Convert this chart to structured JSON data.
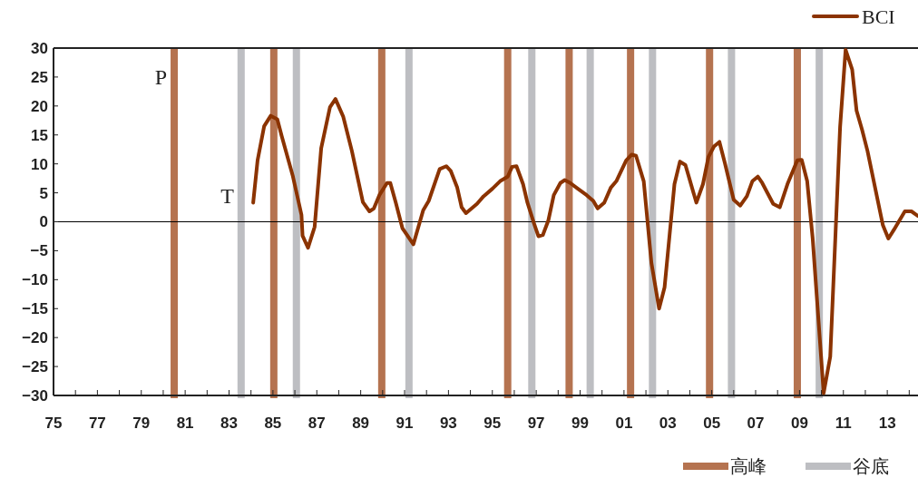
{
  "chart_data": {
    "type": "line",
    "legend": "right",
    "grid": false,
    "xlim": [
      1975,
      2014.4
    ],
    "xticks": [
      {
        "value": 1975,
        "label": "75"
      },
      {
        "value": 1976,
        "label": null
      },
      {
        "value": 1977,
        "label": "77"
      },
      {
        "value": 1978,
        "label": null
      },
      {
        "value": 1979,
        "label": "79"
      },
      {
        "value": 1980,
        "label": null
      },
      {
        "value": 1981,
        "label": "81"
      },
      {
        "value": 1982,
        "label": null
      },
      {
        "value": 1983,
        "label": "83"
      },
      {
        "value": 1984,
        "label": null
      },
      {
        "value": 1985,
        "label": "85"
      },
      {
        "value": 1986,
        "label": null
      },
      {
        "value": 1987,
        "label": "87"
      },
      {
        "value": 1988,
        "label": null
      },
      {
        "value": 1989,
        "label": "89"
      },
      {
        "value": 1990,
        "label": null
      },
      {
        "value": 1991,
        "label": "91"
      },
      {
        "value": 1992,
        "label": null
      },
      {
        "value": 1993,
        "label": "93"
      },
      {
        "value": 1994,
        "label": null
      },
      {
        "value": 1995,
        "label": "95"
      },
      {
        "value": 1996,
        "label": null
      },
      {
        "value": 1997,
        "label": "97"
      },
      {
        "value": 1998,
        "label": null
      },
      {
        "value": 1999,
        "label": "99"
      },
      {
        "value": 2000,
        "label": null
      },
      {
        "value": 2001,
        "label": "01"
      },
      {
        "value": 2002,
        "label": null
      },
      {
        "value": 2003,
        "label": "03"
      },
      {
        "value": 2004,
        "label": null
      },
      {
        "value": 2005,
        "label": "05"
      },
      {
        "value": 2006,
        "label": null
      },
      {
        "value": 2007,
        "label": "07"
      },
      {
        "value": 2008,
        "label": null
      },
      {
        "value": 2009,
        "label": "09"
      },
      {
        "value": 2010,
        "label": null
      },
      {
        "value": 2011,
        "label": "11"
      },
      {
        "value": 2012,
        "label": null
      },
      {
        "value": 2013,
        "label": "13"
      },
      {
        "value": 2014,
        "label": null
      }
    ],
    "ylim": [
      -30,
      30
    ],
    "yticks": [
      -30,
      -25,
      -20,
      -15,
      -10,
      -5,
      0,
      5,
      10,
      15,
      20,
      25,
      30
    ],
    "series": [
      {
        "name": "BCI",
        "color": "#8b3300",
        "line_style": "solid",
        "marker": "none",
        "x": [
          1984.1,
          1984.3,
          1984.6,
          1984.9,
          1985.2,
          1985.4,
          1985.9,
          1986.3,
          1986.35,
          1986.6,
          1986.9,
          1987.2,
          1987.6,
          1987.85,
          1988.2,
          1988.6,
          1989.1,
          1989.4,
          1989.6,
          1989.85,
          1990.2,
          1990.35,
          1990.6,
          1990.9,
          1991.4,
          1991.85,
          1992.1,
          1992.6,
          1992.9,
          1993.1,
          1993.4,
          1993.6,
          1993.8,
          1994.3,
          1994.6,
          1995.0,
          1995.35,
          1995.7,
          1995.9,
          1996.1,
          1996.4,
          1996.6,
          1996.9,
          1997.1,
          1997.3,
          1997.55,
          1997.8,
          1998.1,
          1998.3,
          1998.55,
          1998.9,
          1999.3,
          1999.6,
          1999.8,
          2000.1,
          2000.4,
          2000.65,
          2001.1,
          2001.35,
          2001.55,
          2001.9,
          2002.25,
          2002.6,
          2002.85,
          2003.3,
          2003.55,
          2003.8,
          2004.3,
          2004.6,
          2004.85,
          2005.1,
          2005.35,
          2005.6,
          2006.0,
          2006.3,
          2006.6,
          2006.85,
          2007.1,
          2007.3,
          2007.8,
          2008.1,
          2008.45,
          2008.9,
          2009.1,
          2009.35,
          2009.6,
          2010.1,
          2010.4,
          2010.85,
          2011.1,
          2011.4,
          2011.6,
          2011.85,
          2012.1,
          2012.8,
          2013.05,
          2013.3,
          2013.8,
          2014.1,
          2014.4
        ],
        "values": [
          3.3,
          10.6,
          16.5,
          18.3,
          17.7,
          14.8,
          8.0,
          1.2,
          -2.4,
          -4.5,
          -0.9,
          12.7,
          19.8,
          21.2,
          18.2,
          12.2,
          3.4,
          1.8,
          2.3,
          4.6,
          6.7,
          6.7,
          3.3,
          -1.1,
          -3.9,
          2.0,
          3.6,
          9.1,
          9.6,
          8.8,
          5.9,
          2.5,
          1.5,
          3.1,
          4.4,
          5.7,
          7.0,
          7.8,
          9.5,
          9.6,
          6.5,
          3.3,
          -0.3,
          -2.5,
          -2.3,
          0.2,
          4.6,
          6.7,
          7.2,
          6.7,
          5.7,
          4.6,
          3.6,
          2.3,
          3.3,
          5.9,
          7.0,
          10.6,
          11.6,
          11.4,
          7.0,
          -7.1,
          -15.0,
          -11.3,
          6.5,
          10.4,
          9.8,
          3.3,
          6.5,
          11.2,
          13.0,
          13.8,
          10.1,
          3.8,
          2.8,
          4.4,
          7.0,
          7.8,
          6.7,
          3.1,
          2.5,
          6.5,
          10.6,
          10.7,
          7.0,
          -2.9,
          -29.6,
          -23.3,
          16.4,
          29.7,
          26.3,
          19.2,
          15.9,
          12.2,
          -0.6,
          -2.9,
          -1.4,
          1.8,
          1.8,
          1.0
        ]
      }
    ],
    "ref_lines": [
      {
        "axis": "y",
        "value": 0,
        "label": null,
        "color": "#000000"
      },
      {
        "axis": "x",
        "value": 1980.5,
        "label": "高峰",
        "color": "#b57350"
      },
      {
        "axis": "x",
        "value": 1985.04,
        "label": null,
        "color": "#b57350"
      },
      {
        "axis": "x",
        "value": 1989.96,
        "label": null,
        "color": "#b57350"
      },
      {
        "axis": "x",
        "value": 1995.7,
        "label": null,
        "color": "#b57350"
      },
      {
        "axis": "x",
        "value": 1998.5,
        "label": null,
        "color": "#b57350"
      },
      {
        "axis": "x",
        "value": 2001.3,
        "label": null,
        "color": "#b57350"
      },
      {
        "axis": "x",
        "value": 2004.9,
        "label": null,
        "color": "#b57350"
      },
      {
        "axis": "x",
        "value": 2008.9,
        "label": null,
        "color": "#b57350"
      },
      {
        "axis": "x",
        "value": 1983.55,
        "label": "谷底",
        "color": "#bdbec2"
      },
      {
        "axis": "x",
        "value": 1986.07,
        "label": null,
        "color": "#bdbec2"
      },
      {
        "axis": "x",
        "value": 1991.2,
        "label": null,
        "color": "#bdbec2"
      },
      {
        "axis": "x",
        "value": 1996.8,
        "label": null,
        "color": "#bdbec2"
      },
      {
        "axis": "x",
        "value": 1999.46,
        "label": null,
        "color": "#bdbec2"
      },
      {
        "axis": "x",
        "value": 2002.3,
        "label": null,
        "color": "#bdbec2"
      },
      {
        "axis": "x",
        "value": 2005.9,
        "label": null,
        "color": "#bdbec2"
      },
      {
        "axis": "x",
        "value": 2009.9,
        "label": null,
        "color": "#bdbec2"
      }
    ],
    "annotations": [
      {
        "text": "P",
        "x": 1980.5,
        "y": 25
      },
      {
        "text": "T",
        "x": 1983.55,
        "y": 4.6
      }
    ]
  }
}
